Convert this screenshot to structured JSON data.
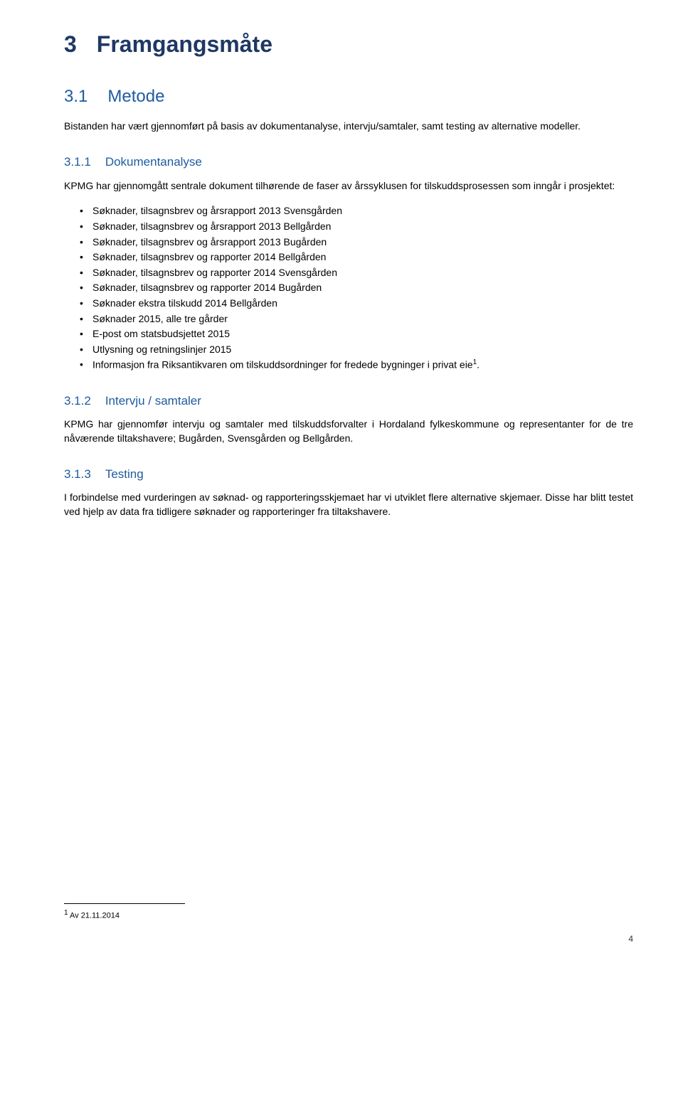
{
  "colors": {
    "heading1": "#1f3864",
    "heading2": "#1f5ba0",
    "body_text": "#000000",
    "background": "#ffffff"
  },
  "typography": {
    "h1_fontsize": 32,
    "h2_fontsize": 24,
    "h3_fontsize": 17,
    "body_fontsize": 14,
    "footnote_fontsize": 11,
    "font_family": "Arial"
  },
  "title": {
    "number": "3",
    "text": "Framgangsmåte"
  },
  "section_3_1": {
    "number": "3.1",
    "title": "Metode",
    "intro": "Bistanden har vært gjennomført på basis av dokumentanalyse, intervju/samtaler, samt testing av alternative modeller."
  },
  "section_3_1_1": {
    "number": "3.1.1",
    "title": "Dokumentanalyse",
    "intro": "KPMG har gjennomgått sentrale dokument tilhørende de faser av årssyklusen for tilskuddsprosessen som inngår i prosjektet:",
    "bullets": [
      "Søknader, tilsagnsbrev og årsrapport 2013 Svensgården",
      "Søknader, tilsagnsbrev og årsrapport 2013 Bellgården",
      "Søknader, tilsagnsbrev og årsrapport 2013 Bugården",
      "Søknader, tilsagnsbrev og rapporter 2014 Bellgården",
      "Søknader, tilsagnsbrev og rapporter 2014 Svensgården",
      "Søknader, tilsagnsbrev og rapporter 2014 Bugården",
      "Søknader ekstra tilskudd 2014 Bellgården",
      "Søknader 2015, alle tre gårder",
      "E-post om statsbudsjettet 2015",
      "Utlysning og retningslinjer 2015"
    ],
    "last_bullet_text": "Informasjon fra Riksantikvaren om tilskuddsordninger for fredede bygninger i privat eie",
    "last_bullet_footnote_mark": "1",
    "last_bullet_period": "."
  },
  "section_3_1_2": {
    "number": "3.1.2",
    "title": "Intervju / samtaler",
    "body": "KPMG har gjennomfør intervju og samtaler med tilskuddsforvalter i Hordaland fylkeskommune og representanter for de tre nåværende tiltakshavere; Bugården, Svensgården og Bellgården."
  },
  "section_3_1_3": {
    "number": "3.1.3",
    "title": "Testing",
    "body": "I forbindelse med vurderingen av søknad- og rapporteringsskjemaet har vi utviklet flere alternative skjemaer. Disse har blitt testet ved hjelp av data fra tidligere søknader og rapporteringer fra tiltakshavere."
  },
  "footnote": {
    "mark": "1",
    "text": " Av 21.11.2014"
  },
  "page_number": "4"
}
